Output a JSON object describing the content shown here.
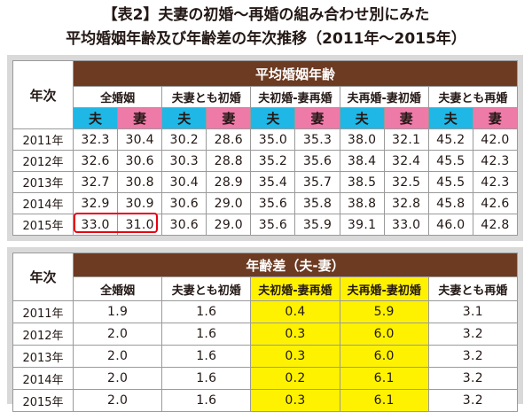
{
  "title_line1": "【表2】夫妻の初婚〜再婚の組み合わせ別にみた",
  "title_line2": "平均婚姻年齢及び年齢差の年次推移（2011年〜2015年）",
  "table1": {
    "band_label": "平均婚姻年齢",
    "year_header": "年次",
    "groups": [
      "全婚姻",
      "夫妻とも初婚",
      "夫初婚-妻再婚",
      "夫再婚-妻初婚",
      "夫妻とも再婚"
    ],
    "husband_label": "夫",
    "wife_label": "妻",
    "rows": [
      {
        "year": "2011年",
        "values": [
          "32.3",
          "30.4",
          "30.2",
          "28.6",
          "35.0",
          "35.3",
          "38.0",
          "32.1",
          "45.2",
          "42.0"
        ]
      },
      {
        "year": "2012年",
        "values": [
          "32.6",
          "30.6",
          "30.3",
          "28.8",
          "35.2",
          "35.6",
          "38.4",
          "32.4",
          "45.5",
          "42.3"
        ]
      },
      {
        "year": "2013年",
        "values": [
          "32.7",
          "30.8",
          "30.4",
          "28.9",
          "35.4",
          "35.7",
          "38.5",
          "32.5",
          "45.5",
          "42.3"
        ]
      },
      {
        "year": "2014年",
        "values": [
          "32.9",
          "30.9",
          "30.6",
          "29.0",
          "35.6",
          "35.8",
          "38.8",
          "32.8",
          "45.8",
          "42.6"
        ]
      },
      {
        "year": "2015年",
        "values": [
          "33.0",
          "31.0",
          "30.6",
          "29.0",
          "35.6",
          "35.9",
          "39.1",
          "33.0",
          "46.0",
          "42.8"
        ]
      }
    ],
    "highlight_color": "#e60012"
  },
  "table2": {
    "band_label": "年齢差（夫-妻）",
    "year_header": "年次",
    "groups": [
      "全婚姻",
      "夫妻とも初婚",
      "夫初婚-妻再婚",
      "夫再婚-妻初婚",
      "夫妻とも再婚"
    ],
    "rows": [
      {
        "year": "2011年",
        "values": [
          "1.9",
          "1.6",
          "0.4",
          "5.9",
          "3.1"
        ]
      },
      {
        "year": "2012年",
        "values": [
          "2.0",
          "1.6",
          "0.3",
          "6.0",
          "3.2"
        ]
      },
      {
        "year": "2013年",
        "values": [
          "2.0",
          "1.6",
          "0.3",
          "6.0",
          "3.2"
        ]
      },
      {
        "year": "2014年",
        "values": [
          "2.0",
          "1.6",
          "0.2",
          "6.1",
          "3.2"
        ]
      },
      {
        "year": "2015年",
        "values": [
          "2.0",
          "1.6",
          "0.3",
          "6.1",
          "3.2"
        ]
      }
    ],
    "highlight_color": "#fff200"
  },
  "colors": {
    "band": "#6d3b22",
    "husband": "#1fb7e6",
    "wife": "#ee7aa8",
    "panel": "#d9d9d9"
  }
}
